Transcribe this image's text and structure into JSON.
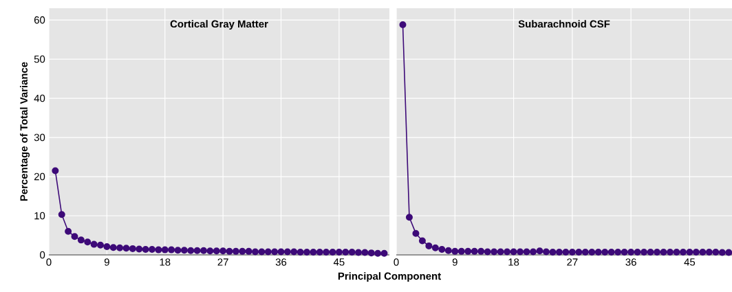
{
  "chart_data": [
    {
      "type": "line",
      "title": "Cortical Gray Matter",
      "xlabel": "Principal Component",
      "ylabel": "Percentage of Total Variance",
      "color": "#3d0a78",
      "marker": "circle",
      "grid": true,
      "x": [
        1,
        2,
        3,
        4,
        5,
        6,
        7,
        8,
        9,
        10,
        11,
        12,
        13,
        14,
        15,
        16,
        17,
        18,
        19,
        20,
        21,
        22,
        23,
        24,
        25,
        26,
        27,
        28,
        29,
        30,
        31,
        32,
        33,
        34,
        35,
        36,
        37,
        38,
        39,
        40,
        41,
        42,
        43,
        44,
        45,
        46,
        47,
        48,
        49,
        50,
        51,
        52
      ],
      "values": [
        21.5,
        10.3,
        6.0,
        4.7,
        3.8,
        3.3,
        2.7,
        2.5,
        2.1,
        1.9,
        1.8,
        1.7,
        1.6,
        1.5,
        1.4,
        1.4,
        1.3,
        1.3,
        1.3,
        1.2,
        1.2,
        1.1,
        1.1,
        1.1,
        1.0,
        1.0,
        1.0,
        0.9,
        0.9,
        0.9,
        0.9,
        0.8,
        0.8,
        0.8,
        0.8,
        0.8,
        0.8,
        0.8,
        0.7,
        0.7,
        0.7,
        0.7,
        0.7,
        0.7,
        0.7,
        0.7,
        0.7,
        0.6,
        0.6,
        0.5,
        0.4,
        0.4
      ],
      "xlim": [
        0,
        52.8
      ],
      "ylim": [
        0,
        63
      ],
      "xticks": [
        0,
        9,
        18,
        27,
        36,
        45
      ],
      "yticks": [
        0,
        10,
        20,
        30,
        40,
        50,
        60
      ]
    },
    {
      "type": "line",
      "title": "Subarachnoid CSF",
      "color": "#3d0a78",
      "marker": "circle",
      "grid": true,
      "tick_labels": "x",
      "x": [
        1,
        2,
        3,
        4,
        5,
        6,
        7,
        8,
        9,
        10,
        11,
        12,
        13,
        14,
        15,
        16,
        17,
        18,
        19,
        20,
        21,
        22,
        23,
        24,
        25,
        26,
        27,
        28,
        29,
        30,
        31,
        32,
        33,
        34,
        35,
        36,
        37,
        38,
        39,
        40,
        41,
        42,
        43,
        44,
        45,
        46,
        47,
        48,
        49,
        50,
        51
      ],
      "values": [
        58.8,
        9.6,
        5.5,
        3.6,
        2.3,
        1.8,
        1.4,
        1.1,
        0.9,
        0.9,
        0.9,
        0.9,
        0.9,
        0.8,
        0.8,
        0.8,
        0.8,
        0.8,
        0.8,
        0.8,
        0.8,
        1.0,
        0.8,
        0.7,
        0.7,
        0.7,
        0.7,
        0.7,
        0.7,
        0.7,
        0.7,
        0.7,
        0.7,
        0.7,
        0.7,
        0.7,
        0.7,
        0.7,
        0.7,
        0.7,
        0.7,
        0.7,
        0.7,
        0.7,
        0.7,
        0.7,
        0.7,
        0.7,
        0.7,
        0.6,
        0.6
      ],
      "xlim": [
        0,
        51.5
      ],
      "ylim": [
        0,
        63
      ],
      "xticks": [
        0,
        9,
        18,
        27,
        36,
        45
      ],
      "yticks": [
        0,
        10,
        20,
        30,
        40,
        50,
        60
      ]
    }
  ]
}
